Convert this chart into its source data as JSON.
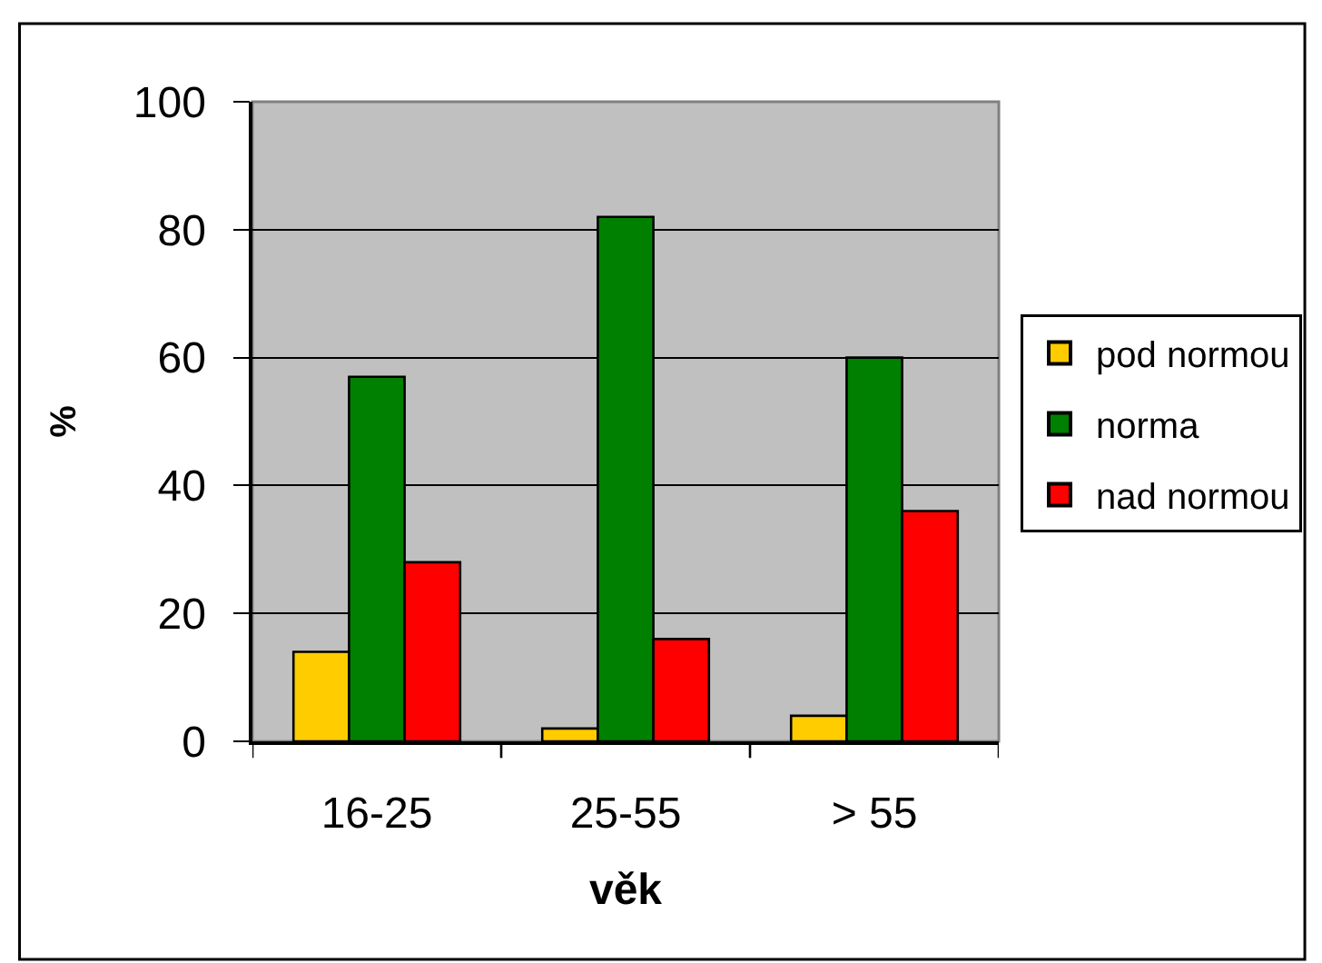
{
  "chart_data": {
    "type": "bar",
    "xlabel": "věk",
    "ylabel": "%",
    "categories": [
      "16-25",
      "25-55",
      "> 55"
    ],
    "series": [
      {
        "name": "pod normou",
        "color": "#ffcc00",
        "values": [
          14,
          2,
          4
        ]
      },
      {
        "name": "norma",
        "color": "#008000",
        "values": [
          57,
          82,
          60
        ]
      },
      {
        "name": "nad normou",
        "color": "#ff0000",
        "values": [
          28,
          16,
          36
        ]
      }
    ],
    "ylim": [
      0,
      100
    ],
    "yticks": [
      0,
      20,
      40,
      60,
      80,
      100
    ],
    "grid": "y",
    "legend": "right"
  }
}
